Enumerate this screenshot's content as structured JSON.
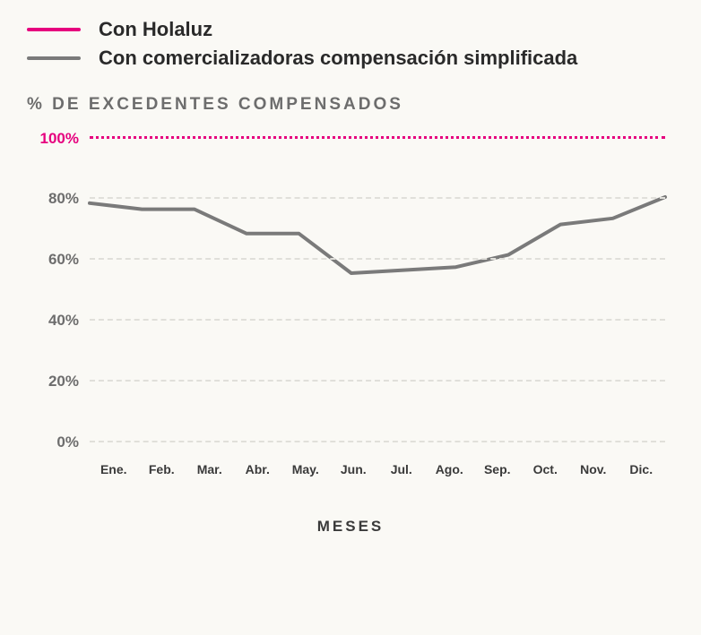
{
  "legend": {
    "items": [
      {
        "label": "Con Holaluz",
        "color": "#e6007e"
      },
      {
        "label": "Con comercializadoras compensación simplificada",
        "color": "#7a7a7a"
      }
    ]
  },
  "chart": {
    "title": "% DE EXCEDENTES COMPENSADOS",
    "type": "line",
    "background_color": "#faf9f5",
    "grid_color": "#e0dfda",
    "highlight_grid_color": "#e6007e",
    "x_axis": {
      "title": "MESES",
      "categories": [
        "Ene.",
        "Feb.",
        "Mar.",
        "Abr.",
        "May.",
        "Jun.",
        "Jul.",
        "Ago.",
        "Sep.",
        "Oct.",
        "Nov.",
        "Dic."
      ]
    },
    "y_axis": {
      "min": 0,
      "max": 100,
      "ticks": [
        {
          "value": 100,
          "label": "100%",
          "highlight": true
        },
        {
          "value": 80,
          "label": "80%",
          "highlight": false
        },
        {
          "value": 60,
          "label": "60%",
          "highlight": false
        },
        {
          "value": 40,
          "label": "40%",
          "highlight": false
        },
        {
          "value": 20,
          "label": "20%",
          "highlight": false
        },
        {
          "value": 0,
          "label": "0%",
          "highlight": false
        }
      ]
    },
    "series": [
      {
        "name": "Con Holaluz",
        "color": "#e6007e",
        "line_width": 3,
        "values": [
          100,
          100,
          100,
          100,
          100,
          100,
          100,
          100,
          100,
          100,
          100,
          100
        ],
        "render_as_dotted_gridline": true
      },
      {
        "name": "Con comercializadoras compensación simplificada",
        "color": "#7a7a7a",
        "line_width": 4,
        "values": [
          78,
          76,
          76,
          68,
          68,
          55,
          56,
          57,
          61,
          71,
          73,
          80
        ],
        "render_as_dotted_gridline": false
      }
    ]
  }
}
